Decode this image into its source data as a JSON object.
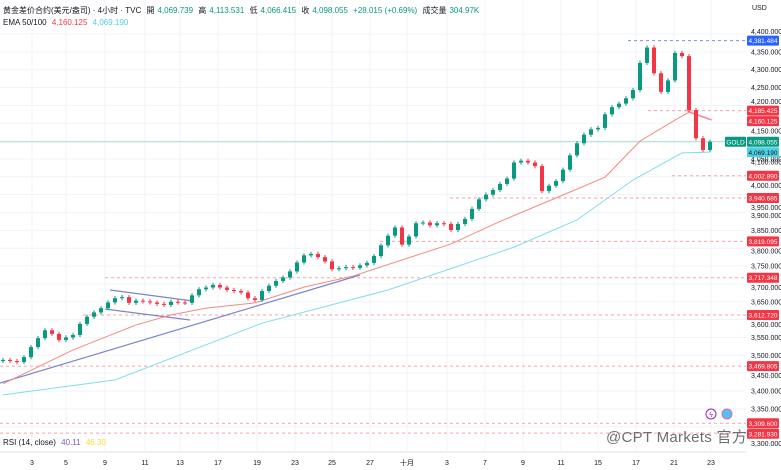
{
  "header": {
    "symbol": "黄金差价合约(美元/盎司) · 4小时 · TVC",
    "open_label": "開",
    "open": "4,069.739",
    "high_label": "高",
    "high": "4,113.531",
    "low_label": "低",
    "low": "4,066.415",
    "close_label": "收",
    "close": "4,098.055",
    "change": "+28.015 (+0.69%)",
    "volume_label": "成交量",
    "volume": "304.97K",
    "ema_label": "EMA 50/100",
    "ema50": "4,160.125",
    "ema100": "4,069.190"
  },
  "rsi": {
    "label": "RSI (14, close)",
    "value1": "40.11",
    "value2": "46.30"
  },
  "watermark": "@CPT Markets 官方",
  "colors": {
    "up": "#089981",
    "down": "#f23645",
    "ema50": "#f28b82",
    "ema100": "#80deea",
    "trendline": "#7986cb",
    "level": "#f23645",
    "high_level": "#2962ff"
  },
  "chart_data": {
    "type": "candlestick",
    "title": "黄金差价合约(美元/盎司) · 4小时 · TVC",
    "ylabel": "USD",
    "ylim": [
      3270,
      4420
    ],
    "grid": true,
    "y_ticks": [
      "4,400.000",
      "4,350.000",
      "4,300.000",
      "4,250.000",
      "4,200.000",
      "4,150.000",
      "4,100.000",
      "4,050.000",
      "4,000.000",
      "3,950.000",
      "3,900.000",
      "3,850.000",
      "3,800.000",
      "3,750.000",
      "3,700.000",
      "3,650.000",
      "3,600.000",
      "3,550.000",
      "3,500.000",
      "3,450.000",
      "3,400.000",
      "3,350.000",
      "3,300.000"
    ],
    "x_ticks": [
      "3",
      "5",
      "9",
      "11",
      "13",
      "17",
      "19",
      "23",
      "25",
      "27",
      "十月",
      "3",
      "7",
      "9",
      "11",
      "15",
      "17",
      "21",
      "23"
    ],
    "close": [
      3487,
      3484,
      3481,
      3495,
      3523,
      3548,
      3570,
      3560,
      3543,
      3550,
      3557,
      3588,
      3608,
      3620,
      3632,
      3648,
      3660,
      3663,
      3647,
      3653,
      3651,
      3648,
      3644,
      3641,
      3650,
      3648,
      3647,
      3668,
      3685,
      3690,
      3697,
      3690,
      3683,
      3680,
      3676,
      3660,
      3655,
      3680,
      3695,
      3708,
      3718,
      3735,
      3760,
      3780,
      3784,
      3775,
      3763,
      3741,
      3744,
      3747,
      3745,
      3752,
      3759,
      3778,
      3808,
      3835,
      3858,
      3810,
      3833,
      3870,
      3872,
      3864,
      3870,
      3868,
      3851,
      3868,
      3882,
      3910,
      3937,
      3950,
      3963,
      3980,
      3995,
      4040,
      4045,
      4040,
      4030,
      3960,
      3975,
      3988,
      4020,
      4060,
      4094,
      4118,
      4133,
      4137,
      4175,
      4195,
      4205,
      4220,
      4243,
      4319,
      4362,
      4290,
      4238,
      4270,
      4347,
      4338,
      4187,
      4108,
      4075,
      4098
    ],
    "ema50": [
      [
        0,
        3420
      ],
      [
        10,
        3515
      ],
      [
        19,
        3585
      ],
      [
        24,
        3613
      ],
      [
        29,
        3632
      ],
      [
        36,
        3647
      ],
      [
        43,
        3691
      ],
      [
        50,
        3722
      ],
      [
        57,
        3767
      ],
      [
        64,
        3812
      ],
      [
        71,
        3875
      ],
      [
        80,
        3949
      ],
      [
        86,
        3999
      ],
      [
        91,
        4100
      ],
      [
        96,
        4159
      ],
      [
        98,
        4181
      ],
      [
        101,
        4160
      ]
    ],
    "ema100": [
      [
        0,
        3389
      ],
      [
        16,
        3431
      ],
      [
        37,
        3590
      ],
      [
        55,
        3683
      ],
      [
        73,
        3803
      ],
      [
        82,
        3879
      ],
      [
        90,
        3991
      ],
      [
        97,
        4067
      ],
      [
        101,
        4069
      ]
    ],
    "levels": [
      {
        "price": 4381.484,
        "label": "4,381.484",
        "style": "high"
      },
      {
        "price": 4185.425,
        "label": "4,185.425",
        "style": "level"
      },
      {
        "price": 4160.125,
        "label": "4,160.125",
        "style": "ema50"
      },
      {
        "price": 4098.055,
        "label": "4,098.055",
        "style": "last",
        "tag": "GOLD"
      },
      {
        "price": 4069.19,
        "label": "4,069.190",
        "style": "ema100"
      },
      {
        "price": 4002.89,
        "label": "4,002.890",
        "style": "level"
      },
      {
        "price": 3940.685,
        "label": "3,940.685",
        "style": "level"
      },
      {
        "price": 3819.095,
        "label": "3,819.095",
        "style": "level"
      },
      {
        "price": 3717.348,
        "label": "3,717.348",
        "style": "level"
      },
      {
        "price": 3612.72,
        "label": "3,612.720",
        "style": "level"
      },
      {
        "price": 3469.805,
        "label": "3,469.805",
        "style": "level"
      },
      {
        "price": 3309.6,
        "label": "3,309.600",
        "style": "level"
      },
      {
        "price": 3281.93,
        "label": "3,281.930",
        "style": "level"
      }
    ]
  }
}
